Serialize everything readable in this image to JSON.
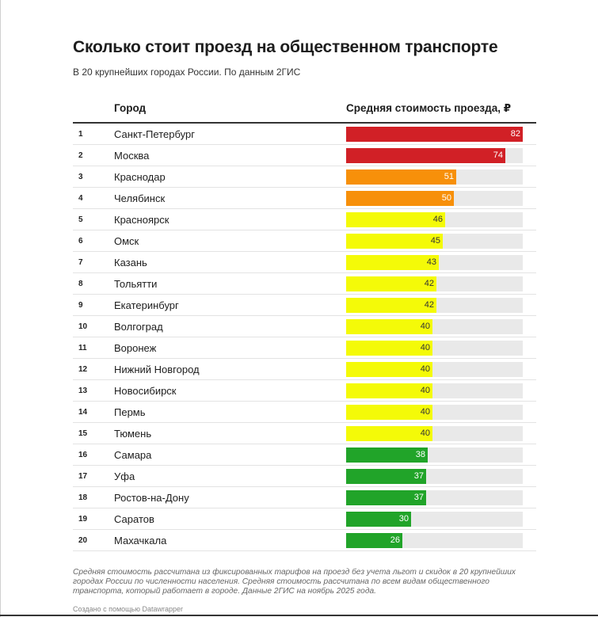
{
  "title": "Сколько стоит проезд на общественном транспорте",
  "subtitle": "В 20 крупнейших городах России. По данным 2ГИС",
  "columns": {
    "city": "Город",
    "value": "Средняя стоимость проезда, ₽"
  },
  "chart_data": {
    "type": "bar",
    "orientation": "horizontal",
    "title": "Сколько стоит проезд на общественном транспорте",
    "subtitle": "В 20 крупнейших городах России. По данным 2ГИС",
    "ylabel": "Город",
    "xlabel": "Средняя стоимость проезда, ₽",
    "xlim": [
      0,
      82
    ],
    "ranks": [
      1,
      2,
      3,
      4,
      5,
      6,
      7,
      8,
      9,
      10,
      11,
      12,
      13,
      14,
      15,
      16,
      17,
      18,
      19,
      20
    ],
    "categories": [
      "Санкт-Петербург",
      "Москва",
      "Краснодар",
      "Челябинск",
      "Красноярск",
      "Омск",
      "Казань",
      "Тольятти",
      "Екатеринбург",
      "Волгоград",
      "Воронеж",
      "Нижний Новгород",
      "Новосибирск",
      "Пермь",
      "Тюмень",
      "Самара",
      "Уфа",
      "Ростов-на-Дону",
      "Саратов",
      "Махачкала"
    ],
    "values": [
      82,
      74,
      51,
      50,
      46,
      45,
      43,
      42,
      42,
      40,
      40,
      40,
      40,
      40,
      40,
      38,
      37,
      37,
      30,
      26
    ],
    "colors": [
      "#d12026",
      "#d12026",
      "#f7900a",
      "#f7900a",
      "#f4fa08",
      "#f4fa08",
      "#f4fa08",
      "#f4fa08",
      "#f4fa08",
      "#f4fa08",
      "#f4fa08",
      "#f4fa08",
      "#f4fa08",
      "#f4fa08",
      "#f4fa08",
      "#21a429",
      "#21a429",
      "#21a429",
      "#21a429",
      "#21a429"
    ],
    "label_colors": [
      "#ffffff",
      "#ffffff",
      "#ffffff",
      "#ffffff",
      "#333333",
      "#333333",
      "#333333",
      "#333333",
      "#333333",
      "#333333",
      "#333333",
      "#333333",
      "#333333",
      "#333333",
      "#333333",
      "#ffffff",
      "#ffffff",
      "#ffffff",
      "#ffffff",
      "#ffffff"
    ]
  },
  "note": "Средняя стоимость рассчитана из фиксированных тарифов на проезд без учета льгот и скидок в 20 крупнейших городах России по численности населения. Средняя стоимость рассчитана по всем видам общественного транспорта, который работает в городе. Данные 2ГИС на ноябрь 2025 года.",
  "credit": "Создано с помощью Datawrapper"
}
